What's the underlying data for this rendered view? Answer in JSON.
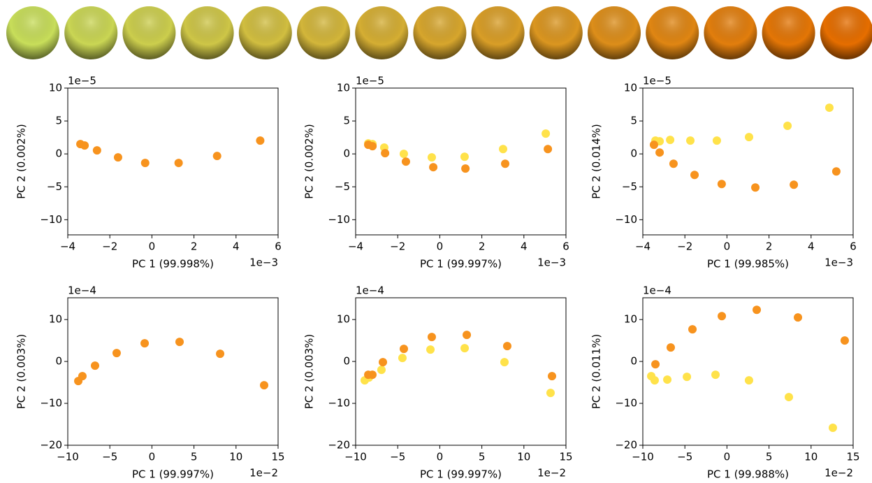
{
  "chart_data": [
    {
      "type": "scatter",
      "x_label": "PC 1 (99.998%)",
      "y_label": "PC 2 (0.002%)",
      "x_offset_label": "1e−3",
      "y_offset_label": "1e−5",
      "xlim": [
        -4,
        6
      ],
      "ylim": [
        -12.3,
        10
      ],
      "xticks": [
        {
          "value": -4,
          "label": "−4"
        },
        {
          "value": -2,
          "label": "−2"
        },
        0,
        2,
        4,
        6
      ],
      "yticks": [
        {
          "value": -10,
          "label": "−10"
        },
        {
          "value": -5,
          "label": "−5"
        },
        0,
        5,
        10
      ],
      "series": [
        {
          "color": "#f7931e",
          "x": [
            -3.4,
            -3.2,
            -2.61,
            -1.61,
            -0.32,
            1.27,
            3.1,
            5.15
          ],
          "y": [
            1.49,
            1.28,
            0.53,
            -0.53,
            -1.38,
            -1.38,
            -0.32,
            2.02
          ]
        }
      ]
    },
    {
      "type": "scatter",
      "x_label": "PC 1 (99.997%)",
      "y_label": "PC 2 (0.002%)",
      "x_offset_label": "1e−3",
      "y_offset_label": "1e−5",
      "xlim": [
        -4,
        6
      ],
      "ylim": [
        -12.3,
        10
      ],
      "xticks": [
        {
          "value": -4,
          "label": "−4"
        },
        {
          "value": -2,
          "label": "−2"
        },
        0,
        2,
        4,
        6
      ],
      "yticks": [
        {
          "value": -10,
          "label": "−10"
        },
        {
          "value": -5,
          "label": "−5"
        },
        0,
        5,
        10
      ],
      "series": [
        {
          "color": "#ffe24a",
          "x": [
            -3.4,
            -3.2,
            -2.64,
            -1.71,
            -0.38,
            1.18,
            3.01,
            5.04
          ],
          "y": [
            1.6,
            1.49,
            0.96,
            0.0,
            -0.53,
            -0.43,
            0.74,
            3.09
          ]
        },
        {
          "color": "#f7931e",
          "x": [
            -3.4,
            -3.2,
            -2.6,
            -1.61,
            -0.31,
            1.22,
            3.11,
            5.14
          ],
          "y": [
            1.38,
            1.17,
            0.11,
            -1.17,
            -2.02,
            -2.23,
            -1.49,
            0.74
          ]
        }
      ]
    },
    {
      "type": "scatter",
      "x_label": "PC 1 (99.985%)",
      "y_label": "PC 2 (0.014%)",
      "x_offset_label": "1e−3",
      "y_offset_label": "1e−5",
      "xlim": [
        -4,
        6
      ],
      "ylim": [
        -12.3,
        10
      ],
      "xticks": [
        {
          "value": -4,
          "label": "−4"
        },
        {
          "value": -2,
          "label": "−2"
        },
        0,
        2,
        4,
        6
      ],
      "yticks": [
        {
          "value": -10,
          "label": "−10"
        },
        {
          "value": -5,
          "label": "−5"
        },
        0,
        5,
        10
      ],
      "series": [
        {
          "color": "#ffe24a",
          "x": [
            -3.4,
            -3.2,
            -2.7,
            -1.74,
            -0.48,
            1.05,
            2.88,
            4.87
          ],
          "y": [
            2.02,
            1.91,
            2.13,
            2.02,
            2.02,
            2.55,
            4.26,
            7.02
          ]
        },
        {
          "color": "#f7931e",
          "x": [
            -3.47,
            -3.2,
            -2.54,
            -1.54,
            -0.25,
            1.35,
            3.18,
            5.2
          ],
          "y": [
            1.38,
            0.21,
            -1.49,
            -3.19,
            -4.57,
            -5.11,
            -4.68,
            -2.66
          ]
        }
      ]
    },
    {
      "type": "scatter",
      "x_label": "PC 1 (99.997%)",
      "y_label": "PC 2 (0.003%)",
      "x_offset_label": "1e−2",
      "y_offset_label": "1e−4",
      "xlim": [
        -10,
        15
      ],
      "ylim": [
        -20,
        15.2
      ],
      "xticks": [
        {
          "value": -10,
          "label": "−10"
        },
        {
          "value": -5,
          "label": "−5"
        },
        0,
        5,
        10,
        15
      ],
      "yticks": [
        {
          "value": -20,
          "label": "−20"
        },
        {
          "value": -10,
          "label": "−10"
        },
        0,
        10
      ],
      "series": [
        {
          "color": "#f7931e",
          "x": [
            -8.75,
            -8.26,
            -6.76,
            -4.19,
            -0.86,
            3.29,
            8.11,
            13.34
          ],
          "y": [
            -4.67,
            -3.5,
            -1.0,
            2.0,
            4.33,
            4.67,
            1.83,
            -5.67
          ]
        }
      ]
    },
    {
      "type": "scatter",
      "x_label": "PC 1 (99.997%)",
      "y_label": "PC 2 (0.003%)",
      "x_offset_label": "1e−2",
      "y_offset_label": "1e−4",
      "xlim": [
        -10,
        15
      ],
      "ylim": [
        -20,
        15.2
      ],
      "xticks": [
        {
          "value": -10,
          "label": "−10"
        },
        {
          "value": -5,
          "label": "−5"
        },
        0,
        5,
        10,
        15
      ],
      "yticks": [
        {
          "value": -20,
          "label": "−20"
        },
        {
          "value": -10,
          "label": "−10"
        },
        0,
        10
      ],
      "series": [
        {
          "color": "#ffe24a",
          "x": [
            -8.92,
            -8.42,
            -6.93,
            -4.44,
            -1.11,
            2.96,
            7.69,
            13.17
          ],
          "y": [
            -4.5,
            -3.83,
            -2.0,
            0.83,
            2.83,
            3.17,
            -0.17,
            -7.5
          ]
        },
        {
          "color": "#f7931e",
          "x": [
            -8.5,
            -8.01,
            -6.76,
            -4.27,
            -0.95,
            3.21,
            8.02,
            13.34
          ],
          "y": [
            -3.17,
            -3.17,
            -0.17,
            3.0,
            5.83,
            6.33,
            3.67,
            -3.5
          ]
        }
      ]
    },
    {
      "type": "scatter",
      "x_label": "PC 1 (99.988%)",
      "y_label": "PC 2 (0.011%)",
      "x_offset_label": "1e−2",
      "y_offset_label": "1e−4",
      "xlim": [
        -10,
        15
      ],
      "ylim": [
        -20,
        15.2
      ],
      "xticks": [
        {
          "value": -10,
          "label": "−10"
        },
        {
          "value": -5,
          "label": "−5"
        },
        0,
        5,
        10,
        15
      ],
      "yticks": [
        {
          "value": -20,
          "label": "−20"
        },
        {
          "value": -10,
          "label": "−10"
        },
        0,
        10
      ],
      "series": [
        {
          "color": "#ffe24a",
          "x": [
            -9.0,
            -8.59,
            -7.09,
            -4.76,
            -1.36,
            2.62,
            7.36,
            12.59
          ],
          "y": [
            -3.5,
            -4.5,
            -4.33,
            -3.67,
            -3.17,
            -4.5,
            -8.5,
            -15.83
          ]
        },
        {
          "color": "#f7931e",
          "x": [
            -8.5,
            -6.68,
            -4.1,
            -0.61,
            3.54,
            8.44,
            14.0
          ],
          "y": [
            -0.67,
            3.33,
            7.67,
            10.83,
            12.33,
            10.5,
            5.0
          ]
        }
      ]
    }
  ]
}
